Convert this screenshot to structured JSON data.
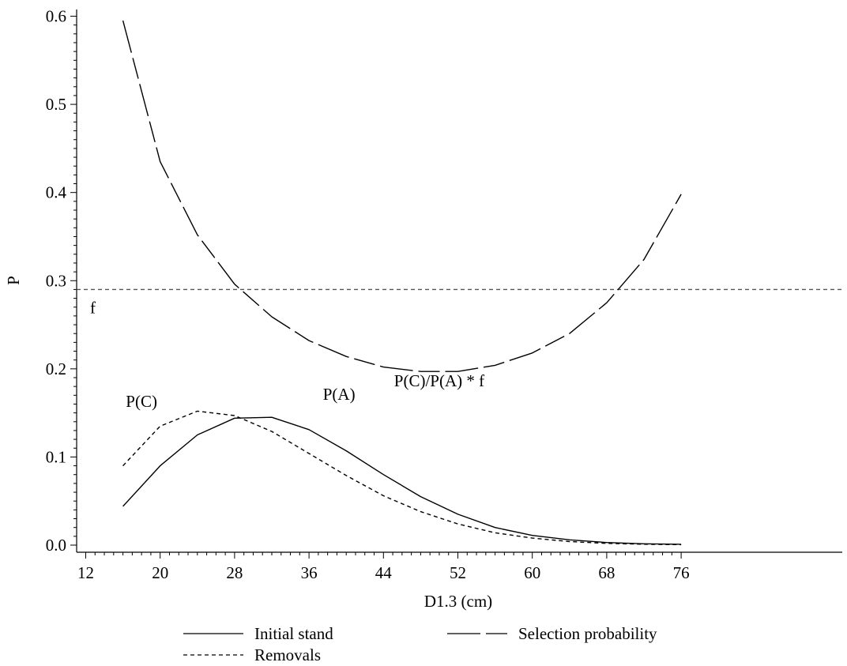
{
  "chart_data": {
    "type": "line",
    "xlabel": "D1.3 (cm)",
    "ylabel": "P",
    "xlim": [
      12,
      76
    ],
    "ylim": [
      0,
      0.6
    ],
    "x_ticks": [
      "12",
      "20",
      "28",
      "36",
      "44",
      "52",
      "60",
      "68",
      "76"
    ],
    "y_ticks": [
      "0.0",
      "0.1",
      "0.2",
      "0.3",
      "0.4",
      "0.5",
      "0.6"
    ],
    "grid": false,
    "legend_position": "bottom",
    "series": [
      {
        "name": "Initial stand",
        "style": "solid",
        "x": [
          16,
          20,
          24,
          28,
          32,
          36,
          40,
          44,
          48,
          52,
          56,
          60,
          64,
          68,
          72,
          76
        ],
        "values": [
          0.044,
          0.09,
          0.125,
          0.144,
          0.145,
          0.131,
          0.107,
          0.08,
          0.055,
          0.035,
          0.02,
          0.011,
          0.006,
          0.003,
          0.0015,
          0.001
        ]
      },
      {
        "name": "Removals",
        "style": "short-dash",
        "x": [
          16,
          20,
          24,
          28,
          32,
          36,
          40,
          44,
          48,
          52,
          56,
          60,
          64,
          68,
          72,
          76
        ],
        "values": [
          0.09,
          0.135,
          0.152,
          0.147,
          0.129,
          0.104,
          0.079,
          0.056,
          0.038,
          0.024,
          0.014,
          0.008,
          0.004,
          0.002,
          0.001,
          0.0005
        ]
      },
      {
        "name": "Selection probability",
        "style": "long-dash",
        "x": [
          16,
          20,
          24,
          28,
          32,
          36,
          40,
          44,
          48,
          52,
          56,
          60,
          64,
          68,
          72,
          76
        ],
        "values": [
          0.595,
          0.435,
          0.352,
          0.296,
          0.259,
          0.232,
          0.214,
          0.202,
          0.197,
          0.197,
          0.204,
          0.218,
          0.24,
          0.275,
          0.324,
          0.398
        ]
      }
    ],
    "reference_line": {
      "y": 0.29,
      "label": "f",
      "style": "short-dash",
      "color": "#555555"
    },
    "annotations": [
      {
        "text": "P(C)",
        "x": 18,
        "y": 0.157
      },
      {
        "text": "P(A)",
        "x": 37.5,
        "y": 0.165
      },
      {
        "text": "P(C)/P(A) * f",
        "x": 50,
        "y": 0.18
      }
    ]
  }
}
